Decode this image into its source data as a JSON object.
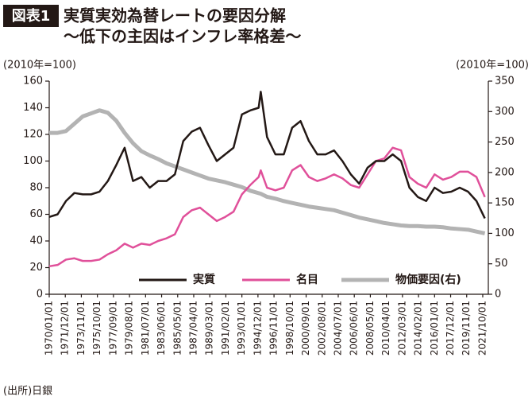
{
  "badge": "図表1",
  "chart_data": {
    "type": "line",
    "title": "実質実効為替レートの要因分解",
    "subtitle": "〜低下の主因はインフレ率格差〜",
    "y_label": "(2010年=100)",
    "y2_label": "(2010年=100)",
    "source": "(出所)日銀",
    "x": [
      "1970/01/01",
      "1971/01/01",
      "1972/01/01",
      "1973/01/01",
      "1974/01/01",
      "1975/01/01",
      "1976/01/01",
      "1977/01/01",
      "1978/01/01",
      "1979/01/01",
      "1980/01/01",
      "1981/01/01",
      "1982/01/01",
      "1983/01/01",
      "1984/01/01",
      "1985/01/01",
      "1986/01/01",
      "1987/01/01",
      "1988/01/01",
      "1989/01/01",
      "1990/01/01",
      "1991/01/01",
      "1992/01/01",
      "1993/01/01",
      "1994/01/01",
      "1995/01/01",
      "1995/04/01",
      "1996/01/01",
      "1997/01/01",
      "1998/01/01",
      "1999/01/01",
      "2000/01/01",
      "2001/01/01",
      "2002/01/01",
      "2003/01/01",
      "2004/01/01",
      "2005/01/01",
      "2006/01/01",
      "2007/01/01",
      "2008/01/01",
      "2009/01/01",
      "2010/01/01",
      "2011/01/01",
      "2012/01/01",
      "2013/01/01",
      "2014/01/01",
      "2015/01/01",
      "2016/01/01",
      "2017/01/01",
      "2018/01/01",
      "2019/01/01",
      "2020/01/01",
      "2021/01/01",
      "2022/01/01"
    ],
    "xlim": [
      "1970/01/01",
      "2022/06/01"
    ],
    "xticks": [
      "1970/01/01",
      "1971/12/01",
      "1973/11/01",
      "1975/10/01",
      "1977/09/01",
      "1979/08/01",
      "1981/07/01",
      "1983/06/01",
      "1985/05/01",
      "1987/04/01",
      "1989/03/01",
      "1991/02/01",
      "1993/01/01",
      "1994/12/01",
      "1996/11/01",
      "1998/10/01",
      "2000/09/01",
      "2002/08/01",
      "2004/07/01",
      "2006/06/01",
      "2008/05/01",
      "2010/04/01",
      "2012/03/01",
      "2014/02/01",
      "2016/01/01",
      "2017/12/01",
      "2019/11/01",
      "2021/10/01"
    ],
    "ylim": [
      0,
      160
    ],
    "yticks": [
      0,
      20,
      40,
      60,
      80,
      100,
      120,
      140,
      160
    ],
    "y2lim": [
      0,
      350
    ],
    "y2ticks": [
      0,
      50,
      100,
      150,
      200,
      250,
      300,
      350
    ],
    "grid": false,
    "legend": "bottom",
    "series": [
      {
        "name": "実質",
        "color": "#231815",
        "values": [
          58,
          60,
          70,
          76,
          75,
          75,
          77,
          85,
          97,
          110,
          85,
          88,
          80,
          85,
          85,
          90,
          115,
          122,
          125,
          112,
          100,
          105,
          110,
          135,
          138,
          140,
          152,
          118,
          105,
          105,
          125,
          130,
          115,
          105,
          105,
          108,
          100,
          90,
          83,
          95,
          100,
          100,
          105,
          100,
          80,
          73,
          70,
          80,
          76,
          77,
          80,
          77,
          70,
          57
        ]
      },
      {
        "name": "名目",
        "color": "#e0509a",
        "values": [
          21,
          22,
          26,
          27,
          25,
          25,
          26,
          30,
          33,
          38,
          35,
          38,
          37,
          40,
          42,
          45,
          58,
          63,
          65,
          60,
          55,
          58,
          62,
          75,
          82,
          88,
          93,
          80,
          78,
          80,
          93,
          97,
          88,
          85,
          87,
          90,
          87,
          82,
          80,
          90,
          100,
          102,
          110,
          108,
          88,
          83,
          80,
          90,
          86,
          88,
          92,
          92,
          88,
          73
        ]
      },
      {
        "name": "物価要因(右)",
        "color": "#b3b3b3",
        "axis": "y2",
        "values": [
          265,
          265,
          268,
          280,
          292,
          297,
          302,
          298,
          285,
          265,
          248,
          235,
          228,
          222,
          215,
          210,
          205,
          200,
          195,
          190,
          187,
          184,
          180,
          176,
          170,
          166,
          165,
          160,
          157,
          153,
          150,
          147,
          144,
          142,
          140,
          138,
          134,
          130,
          126,
          123,
          120,
          117,
          115,
          113,
          112,
          112,
          111,
          111,
          110,
          108,
          107,
          106,
          103,
          100
        ]
      }
    ]
  }
}
